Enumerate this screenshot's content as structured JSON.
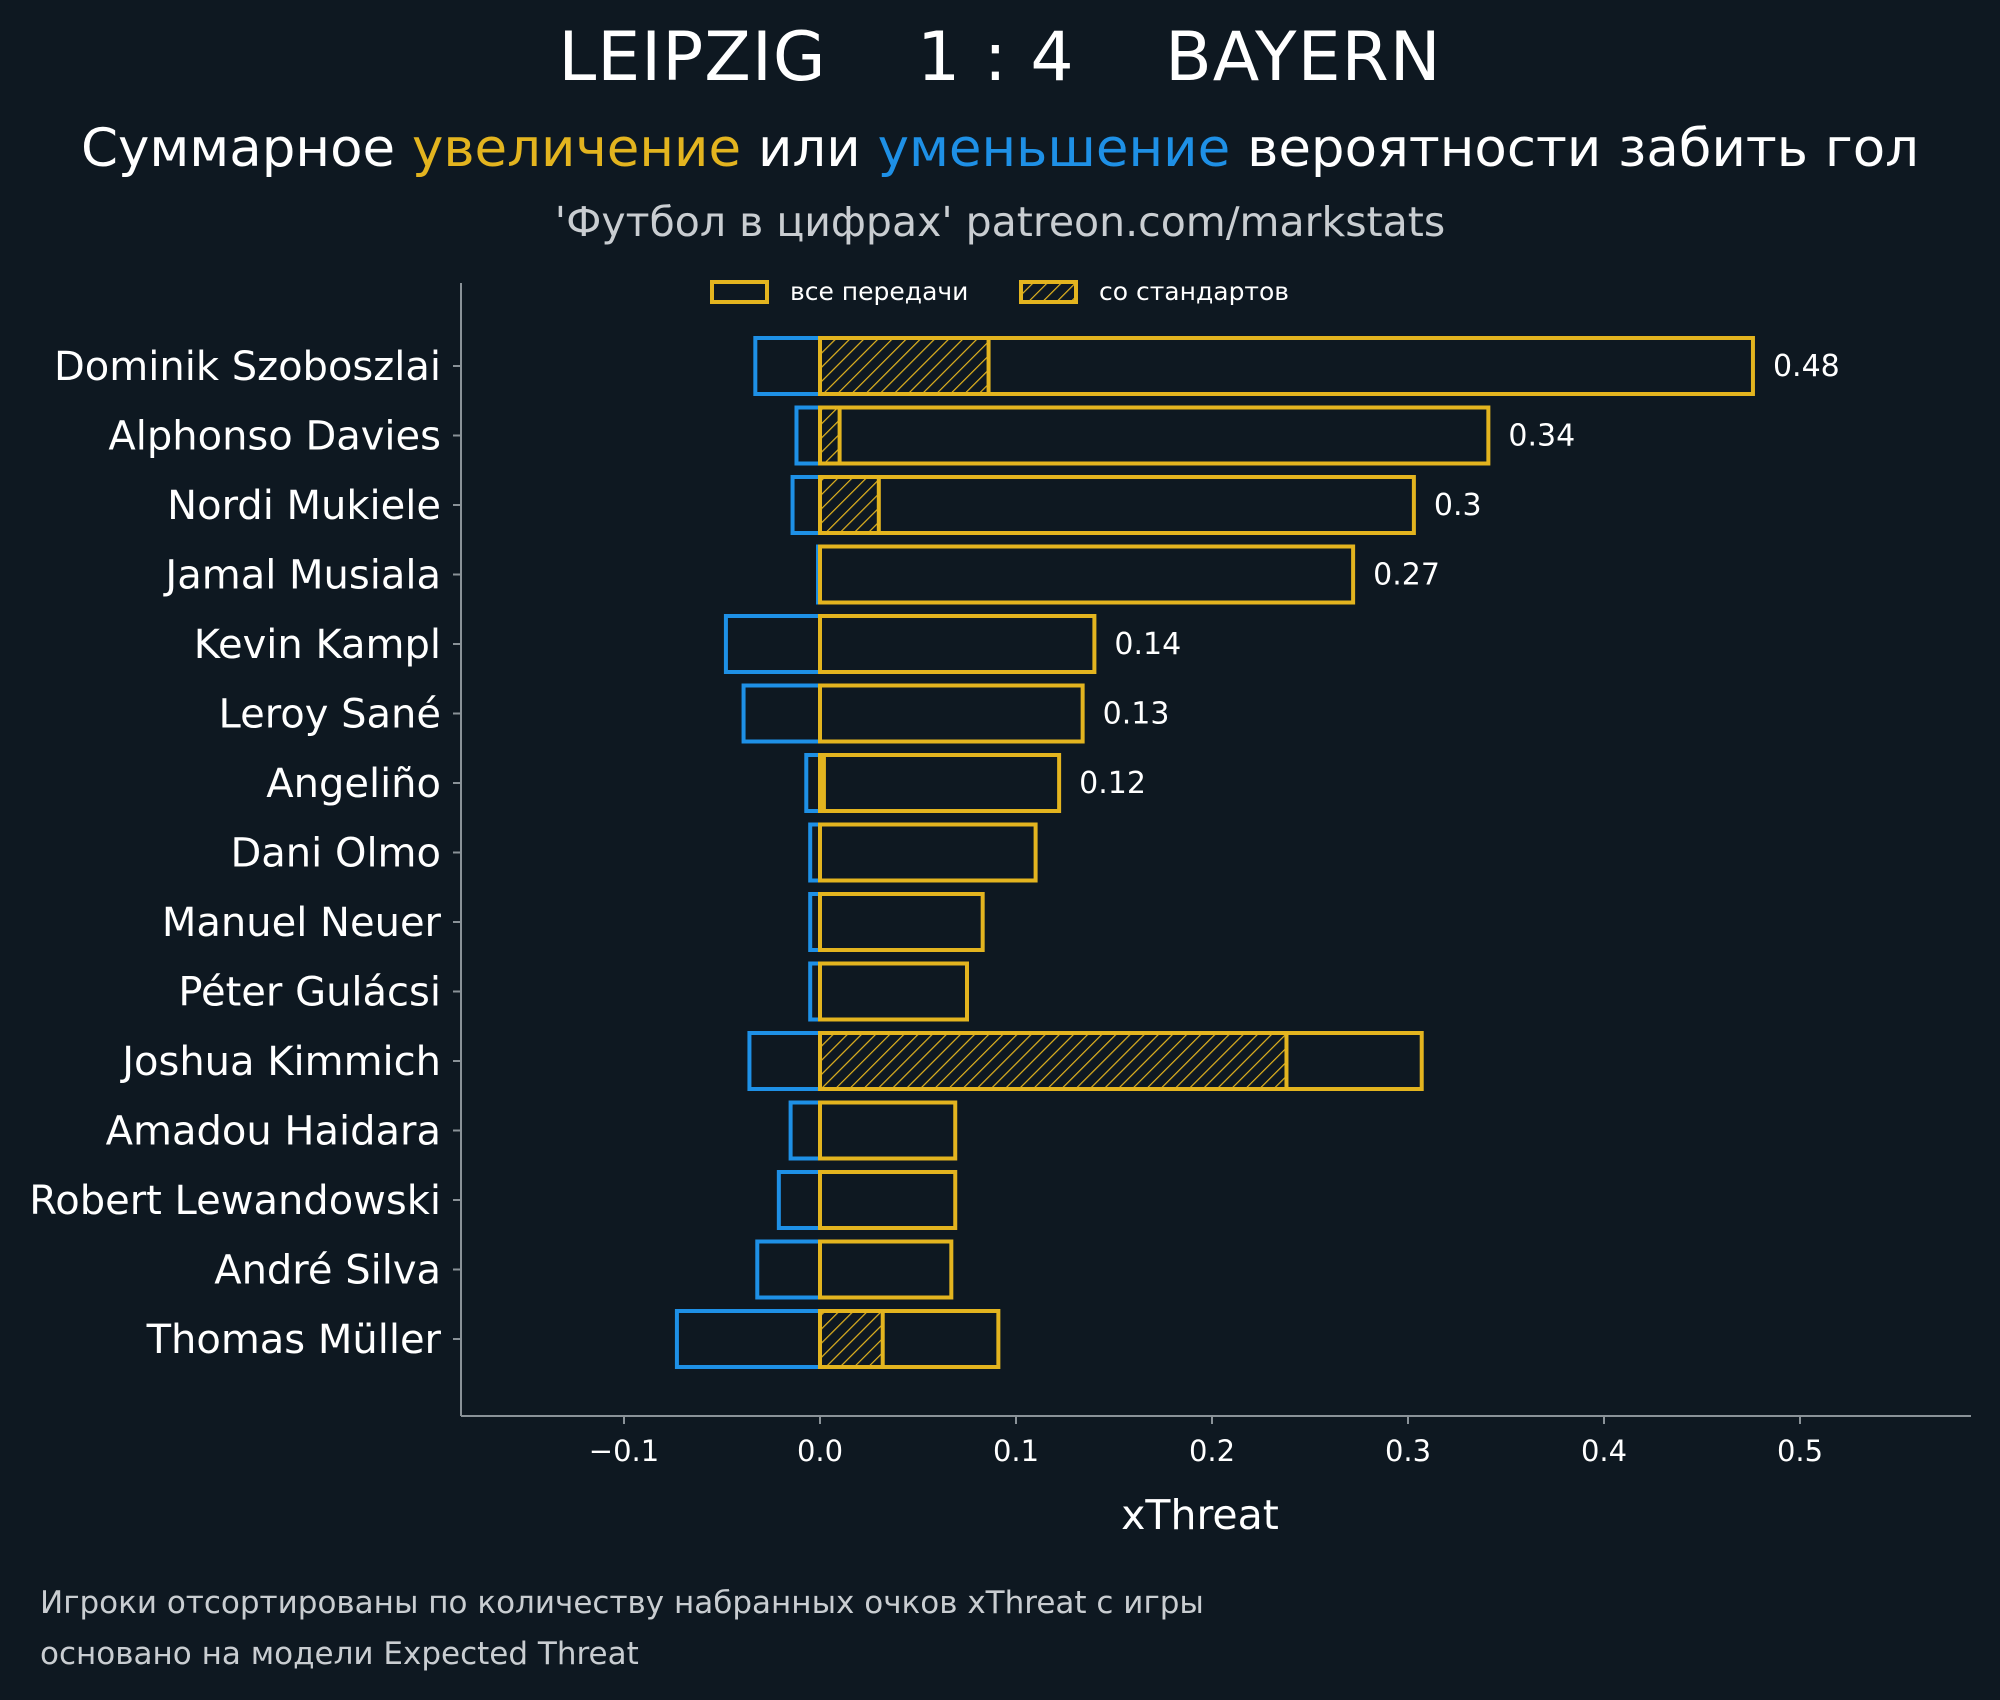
{
  "header": {
    "title": "LEIPZIG    1 : 4    BAYERN",
    "subtitle_part1": "Суммарное ",
    "subtitle_part2": "увеличение",
    "subtitle_part3": " или ",
    "subtitle_part4": "уменьшение",
    "subtitle_part5": " вероятности забить гол",
    "credit": "'Футбол в цифрах' patreon.com/markstats"
  },
  "footnotes": {
    "line1": "Игроки отсортированы по количеству набранных очков xThreat с игры",
    "line2": "основано на модели Expected Threat"
  },
  "colors": {
    "background": "#0e1821",
    "increase": "#e3b41f",
    "decrease": "#1e90e6",
    "axis": "#8a9298"
  },
  "chart_data": {
    "type": "bar",
    "orientation": "horizontal",
    "xlabel": "xThreat",
    "xlim": [
      -0.18,
      0.58
    ],
    "xticks": [
      -0.1,
      0.0,
      0.1,
      0.2,
      0.3,
      0.4,
      0.5
    ],
    "xtick_labels": [
      "−0.1",
      "0.0",
      "0.1",
      "0.2",
      "0.3",
      "0.4",
      "0.5"
    ],
    "legend": {
      "placement": "top-center",
      "all_passes": "все передачи",
      "set_pieces": "со стандартов"
    },
    "categories": [
      "Dominik Szoboszlai",
      "Alphonso Davies",
      "Nordi Mukiele",
      "Jamal Musiala",
      "Kevin Kampl",
      "Leroy Sané",
      "Angeliño",
      "Dani Olmo",
      "Manuel Neuer",
      "Péter Gulácsi",
      "Joshua Kimmich",
      "Amadou Haidara",
      "Robert Lewandowski",
      "André Silva",
      "Thomas Müller"
    ],
    "series": [
      {
        "name": "increase (все передачи)",
        "values": [
          0.476,
          0.341,
          0.303,
          0.272,
          0.14,
          0.134,
          0.122,
          0.11,
          0.083,
          0.075,
          0.307,
          0.069,
          0.069,
          0.067,
          0.091
        ]
      },
      {
        "name": "increase (со стандартов)",
        "values": [
          0.086,
          0.01,
          0.03,
          0.0,
          0.0,
          0.0,
          0.002,
          0.0,
          0.0,
          0.0,
          0.238,
          0.0,
          0.0,
          0.0,
          0.032
        ]
      },
      {
        "name": "decrease",
        "values": [
          -0.033,
          -0.012,
          -0.014,
          -0.001,
          -0.048,
          -0.039,
          -0.007,
          -0.005,
          -0.005,
          -0.005,
          -0.036,
          -0.015,
          -0.021,
          -0.032,
          -0.073
        ]
      }
    ],
    "value_labels": [
      "0.48",
      "0.34",
      "0.3",
      "0.27",
      "0.14",
      "0.13",
      "0.12",
      "",
      "",
      "",
      "",
      "",
      "",
      "",
      ""
    ]
  }
}
